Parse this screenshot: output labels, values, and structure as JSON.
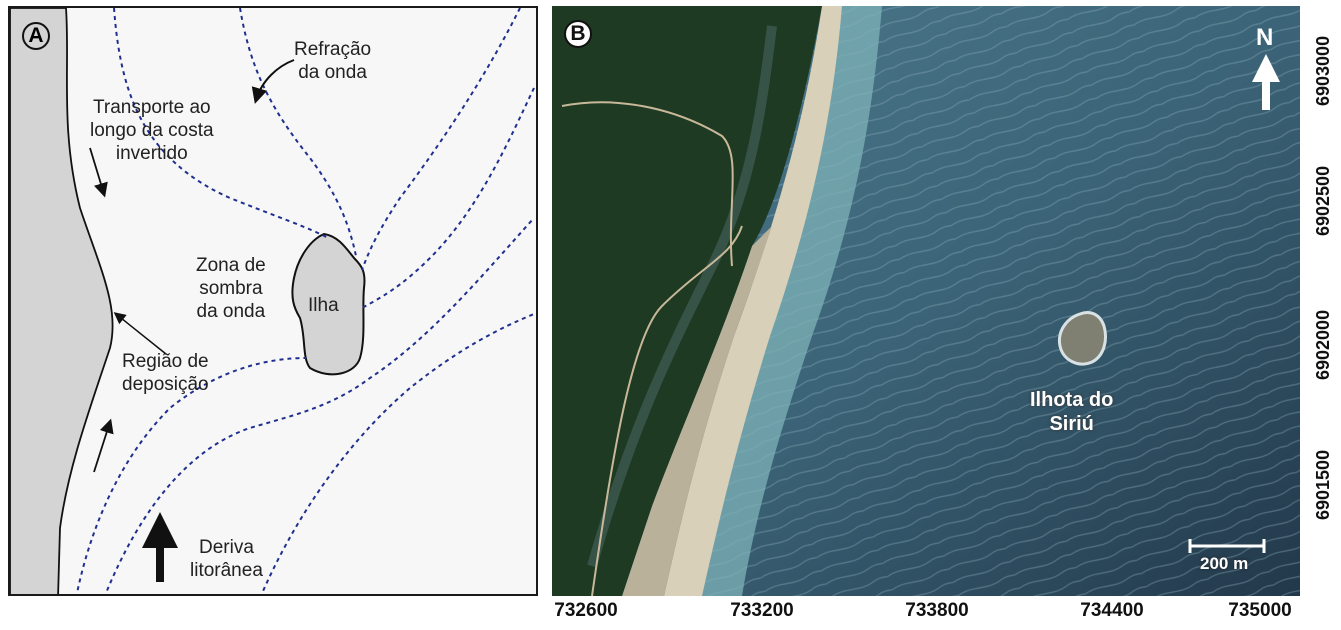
{
  "panel_a": {
    "letter": "A",
    "labels": {
      "refraction": [
        "Refração",
        "da onda"
      ],
      "transport": [
        "Transporte ao",
        "longo da costa",
        "invertido"
      ],
      "shadow": [
        "Zona de",
        "sombra",
        "da onda"
      ],
      "island": "Ilha",
      "deposition": [
        "Região de",
        "deposição"
      ],
      "drift": [
        "Deriva",
        "litorânea"
      ]
    },
    "colors": {
      "wave_lines": "#1f2f8f",
      "land": "#d4d4d4",
      "sea": "#f7f7f7"
    }
  },
  "panel_b": {
    "letter": "B",
    "north": "N",
    "island_label": [
      "Ilhota do",
      "Siriú"
    ],
    "scale_bar": "200 m",
    "x_ticks": [
      "732600",
      "733200",
      "733800",
      "734400",
      "735000"
    ],
    "y_ticks": [
      "6903000",
      "6902500",
      "6902000",
      "6901500"
    ]
  }
}
